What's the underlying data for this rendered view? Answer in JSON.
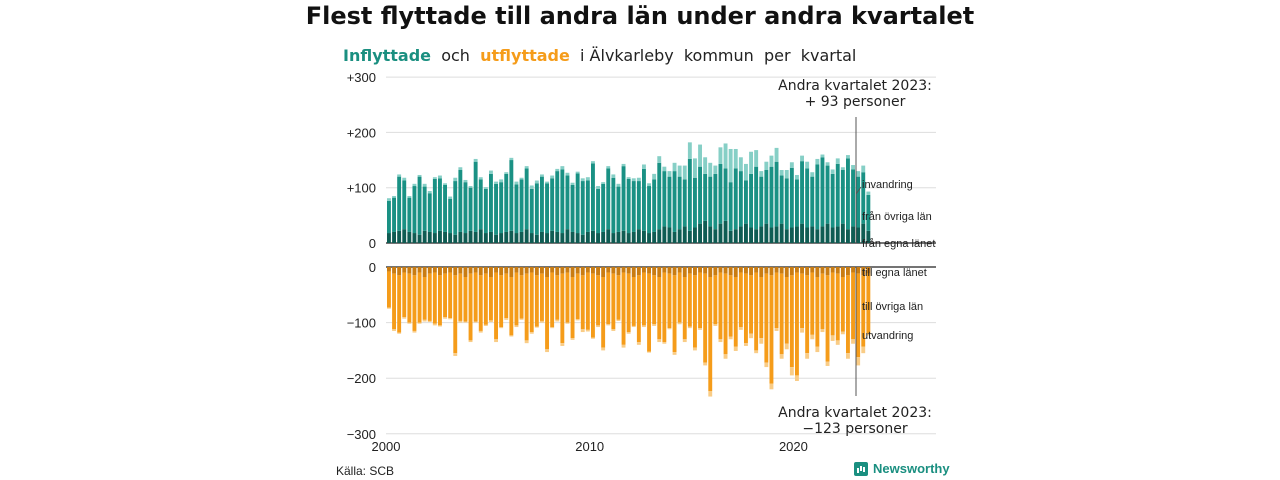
{
  "title": "Flest flyttade till andra län under andra kvartalet",
  "subtitle": {
    "in_word": "Inflyttade",
    "och": "och",
    "ut_word": "utflyttade",
    "rest": "i Älvkarleby  kommun  per  kvartal"
  },
  "source": "Källa: SCB",
  "brand": "Newsworthy",
  "colors": {
    "own_in": "#0f5c53",
    "other_in": "#1a9184",
    "emig_in": "#86cfc6",
    "own_out": "#c97c12",
    "other_out": "#f59c1a",
    "emig_out": "#f9cc86"
  },
  "chart_data": {
    "type": "bar",
    "stacked": true,
    "title": "Flest flyttade till andra län under andra kvartalet",
    "x_ticks": [
      "2000",
      "2010",
      "2020"
    ],
    "xlim": [
      2000,
      2027
    ],
    "top_panel": {
      "y_ticks": [
        "+300",
        "+200",
        "+100",
        "0"
      ],
      "ylim": [
        0,
        300
      ],
      "annotation": [
        "Andra kvartalet 2023:",
        "+ 93 personer"
      ],
      "series_labels": [
        "invandring",
        "från övriga län",
        "från egna länet"
      ],
      "series": [
        {
          "name": "från egna länet",
          "values": [
            18,
            20,
            22,
            25,
            20,
            18,
            15,
            22,
            20,
            18,
            22,
            20,
            18,
            15,
            20,
            18,
            22,
            20,
            25,
            18,
            20,
            15,
            18,
            20,
            22,
            18,
            20,
            25,
            18,
            15,
            20,
            18,
            22,
            20,
            18,
            25,
            20,
            18,
            15,
            20,
            22,
            18,
            20,
            25,
            18,
            20,
            22,
            18,
            20,
            25,
            22,
            18,
            20,
            25,
            30,
            28,
            20,
            25,
            30,
            22,
            28,
            35,
            40,
            30,
            25,
            35,
            40,
            22,
            25,
            30,
            35,
            28,
            25,
            30,
            35,
            28,
            30,
            35,
            25,
            28,
            30,
            35,
            28,
            30,
            25,
            30,
            35,
            28,
            30,
            35,
            25,
            30,
            28,
            35,
            22
          ]
        },
        {
          "name": "från övriga län",
          "values": [
            58,
            62,
            98,
            88,
            62,
            85,
            105,
            80,
            70,
            98,
            95,
            85,
            62,
            97,
            112,
            92,
            78,
            127,
            90,
            80,
            105,
            92,
            92,
            105,
            128,
            88,
            95,
            110,
            80,
            93,
            100,
            90,
            95,
            110,
            115,
            97,
            85,
            108,
            97,
            93,
            122,
            80,
            87,
            110,
            100,
            82,
            117,
            98,
            92,
            87,
            112,
            85,
            95,
            120,
            100,
            92,
            110,
            95,
            85,
            130,
            90,
            103,
            85,
            90,
            100,
            108,
            95,
            88,
            110,
            100,
            78,
            97,
            113,
            90,
            97,
            110,
            117,
            87,
            92,
            108,
            85,
            113,
            107,
            90,
            117,
            125,
            105,
            97,
            113,
            97,
            128,
            103,
            92,
            93,
            65
          ]
        },
        {
          "name": "invandring",
          "values": [
            5,
            3,
            4,
            5,
            3,
            4,
            3,
            5,
            4,
            3,
            5,
            3,
            4,
            6,
            5,
            4,
            3,
            5,
            4,
            3,
            6,
            4,
            5,
            3,
            4,
            5,
            3,
            4,
            6,
            5,
            4,
            3,
            5,
            4,
            6,
            5,
            4,
            3,
            5,
            6,
            4,
            5,
            3,
            4,
            6,
            5,
            4,
            3,
            5,
            6,
            8,
            5,
            10,
            12,
            8,
            10,
            15,
            20,
            25,
            30,
            35,
            40,
            30,
            25,
            15,
            30,
            45,
            60,
            35,
            25,
            30,
            40,
            30,
            10,
            15,
            20,
            25,
            10,
            15,
            10,
            8,
            10,
            12,
            8,
            10,
            5,
            6,
            8,
            10,
            5,
            6,
            8,
            10,
            12,
            6
          ]
        }
      ]
    },
    "bottom_panel": {
      "y_ticks": [
        "0",
        "−100",
        "−200",
        "−300"
      ],
      "ylim": [
        -300,
        0
      ],
      "annotation": [
        "Andra kvartalet 2023:",
        "−123 personer"
      ],
      "series_labels": [
        "till egna länet",
        "till övriga län",
        "utvandring"
      ],
      "series": [
        {
          "name": "till egna länet",
          "values": [
            -8,
            -12,
            -15,
            -10,
            -12,
            -15,
            -10,
            -18,
            -12,
            -10,
            -15,
            -12,
            -10,
            -15,
            -12,
            -18,
            -12,
            -10,
            -15,
            -12,
            -18,
            -10,
            -15,
            -12,
            -18,
            -10,
            -15,
            -12,
            -10,
            -15,
            -12,
            -18,
            -10,
            -15,
            -12,
            -10,
            -18,
            -12,
            -15,
            -10,
            -12,
            -15,
            -18,
            -10,
            -12,
            -15,
            -10,
            -12,
            -18,
            -15,
            -10,
            -12,
            -15,
            -18,
            -10,
            -12,
            -15,
            -10,
            -18,
            -12,
            -15,
            -10,
            -12,
            -18,
            -15,
            -10,
            -12,
            -15,
            -18,
            -10,
            -12,
            -15,
            -10,
            -18,
            -12,
            -15,
            -10,
            -12,
            -18,
            -15,
            -10,
            -12,
            -15,
            -10,
            -18,
            -12,
            -15,
            -10,
            -12,
            -18,
            -15,
            -10,
            -12,
            -15,
            -12
          ]
        },
        {
          "name": "till övriga län",
          "values": [
            -65,
            -100,
            -103,
            -80,
            -88,
            -100,
            -90,
            -77,
            -85,
            -92,
            -90,
            -78,
            -82,
            -140,
            -85,
            -80,
            -120,
            -88,
            -100,
            -92,
            -78,
            -120,
            -93,
            -80,
            -105,
            -95,
            -78,
            -120,
            -107,
            -92,
            -85,
            -130,
            -98,
            -80,
            -125,
            -90,
            -110,
            -82,
            -97,
            -103,
            -115,
            -90,
            -127,
            -93,
            -100,
            -80,
            -130,
            -105,
            -88,
            -120,
            -95,
            -140,
            -88,
            -112,
            -125,
            -98,
            -138,
            -90,
            -112,
            -95,
            -130,
            -100,
            -160,
            -205,
            -88,
            -120,
            -145,
            -110,
            -125,
            -98,
            -125,
            -105,
            -140,
            -110,
            -160,
            -195,
            -100,
            -145,
            -120,
            -165,
            -185,
            -98,
            -140,
            -112,
            -125,
            -100,
            -155,
            -113,
            -120,
            -98,
            -140,
            -120,
            -150,
            -128,
            -108
          ]
        },
        {
          "name": "utvandring",
          "values": [
            -2,
            -3,
            -2,
            -3,
            -2,
            -3,
            -2,
            -3,
            -2,
            -3,
            -2,
            -3,
            -2,
            -5,
            -3,
            -2,
            -3,
            -2,
            -3,
            -2,
            -3,
            -5,
            -2,
            -3,
            -2,
            -3,
            -2,
            -5,
            -3,
            -2,
            -3,
            -5,
            -2,
            -3,
            -5,
            -2,
            -3,
            -2,
            -5,
            -3,
            -2,
            -3,
            -5,
            -2,
            -3,
            -2,
            -5,
            -3,
            -2,
            -5,
            -3,
            -2,
            -3,
            -5,
            -3,
            -2,
            -5,
            -3,
            -5,
            -3,
            -5,
            -3,
            -5,
            -10,
            -3,
            -5,
            -8,
            -5,
            -8,
            -5,
            -5,
            -8,
            -5,
            -10,
            -8,
            -10,
            -5,
            -8,
            -10,
            -15,
            -10,
            -8,
            -10,
            -8,
            -10,
            -5,
            -8,
            -10,
            -8,
            -5,
            -10,
            -8,
            -15,
            -12,
            -3
          ]
        }
      ]
    }
  }
}
